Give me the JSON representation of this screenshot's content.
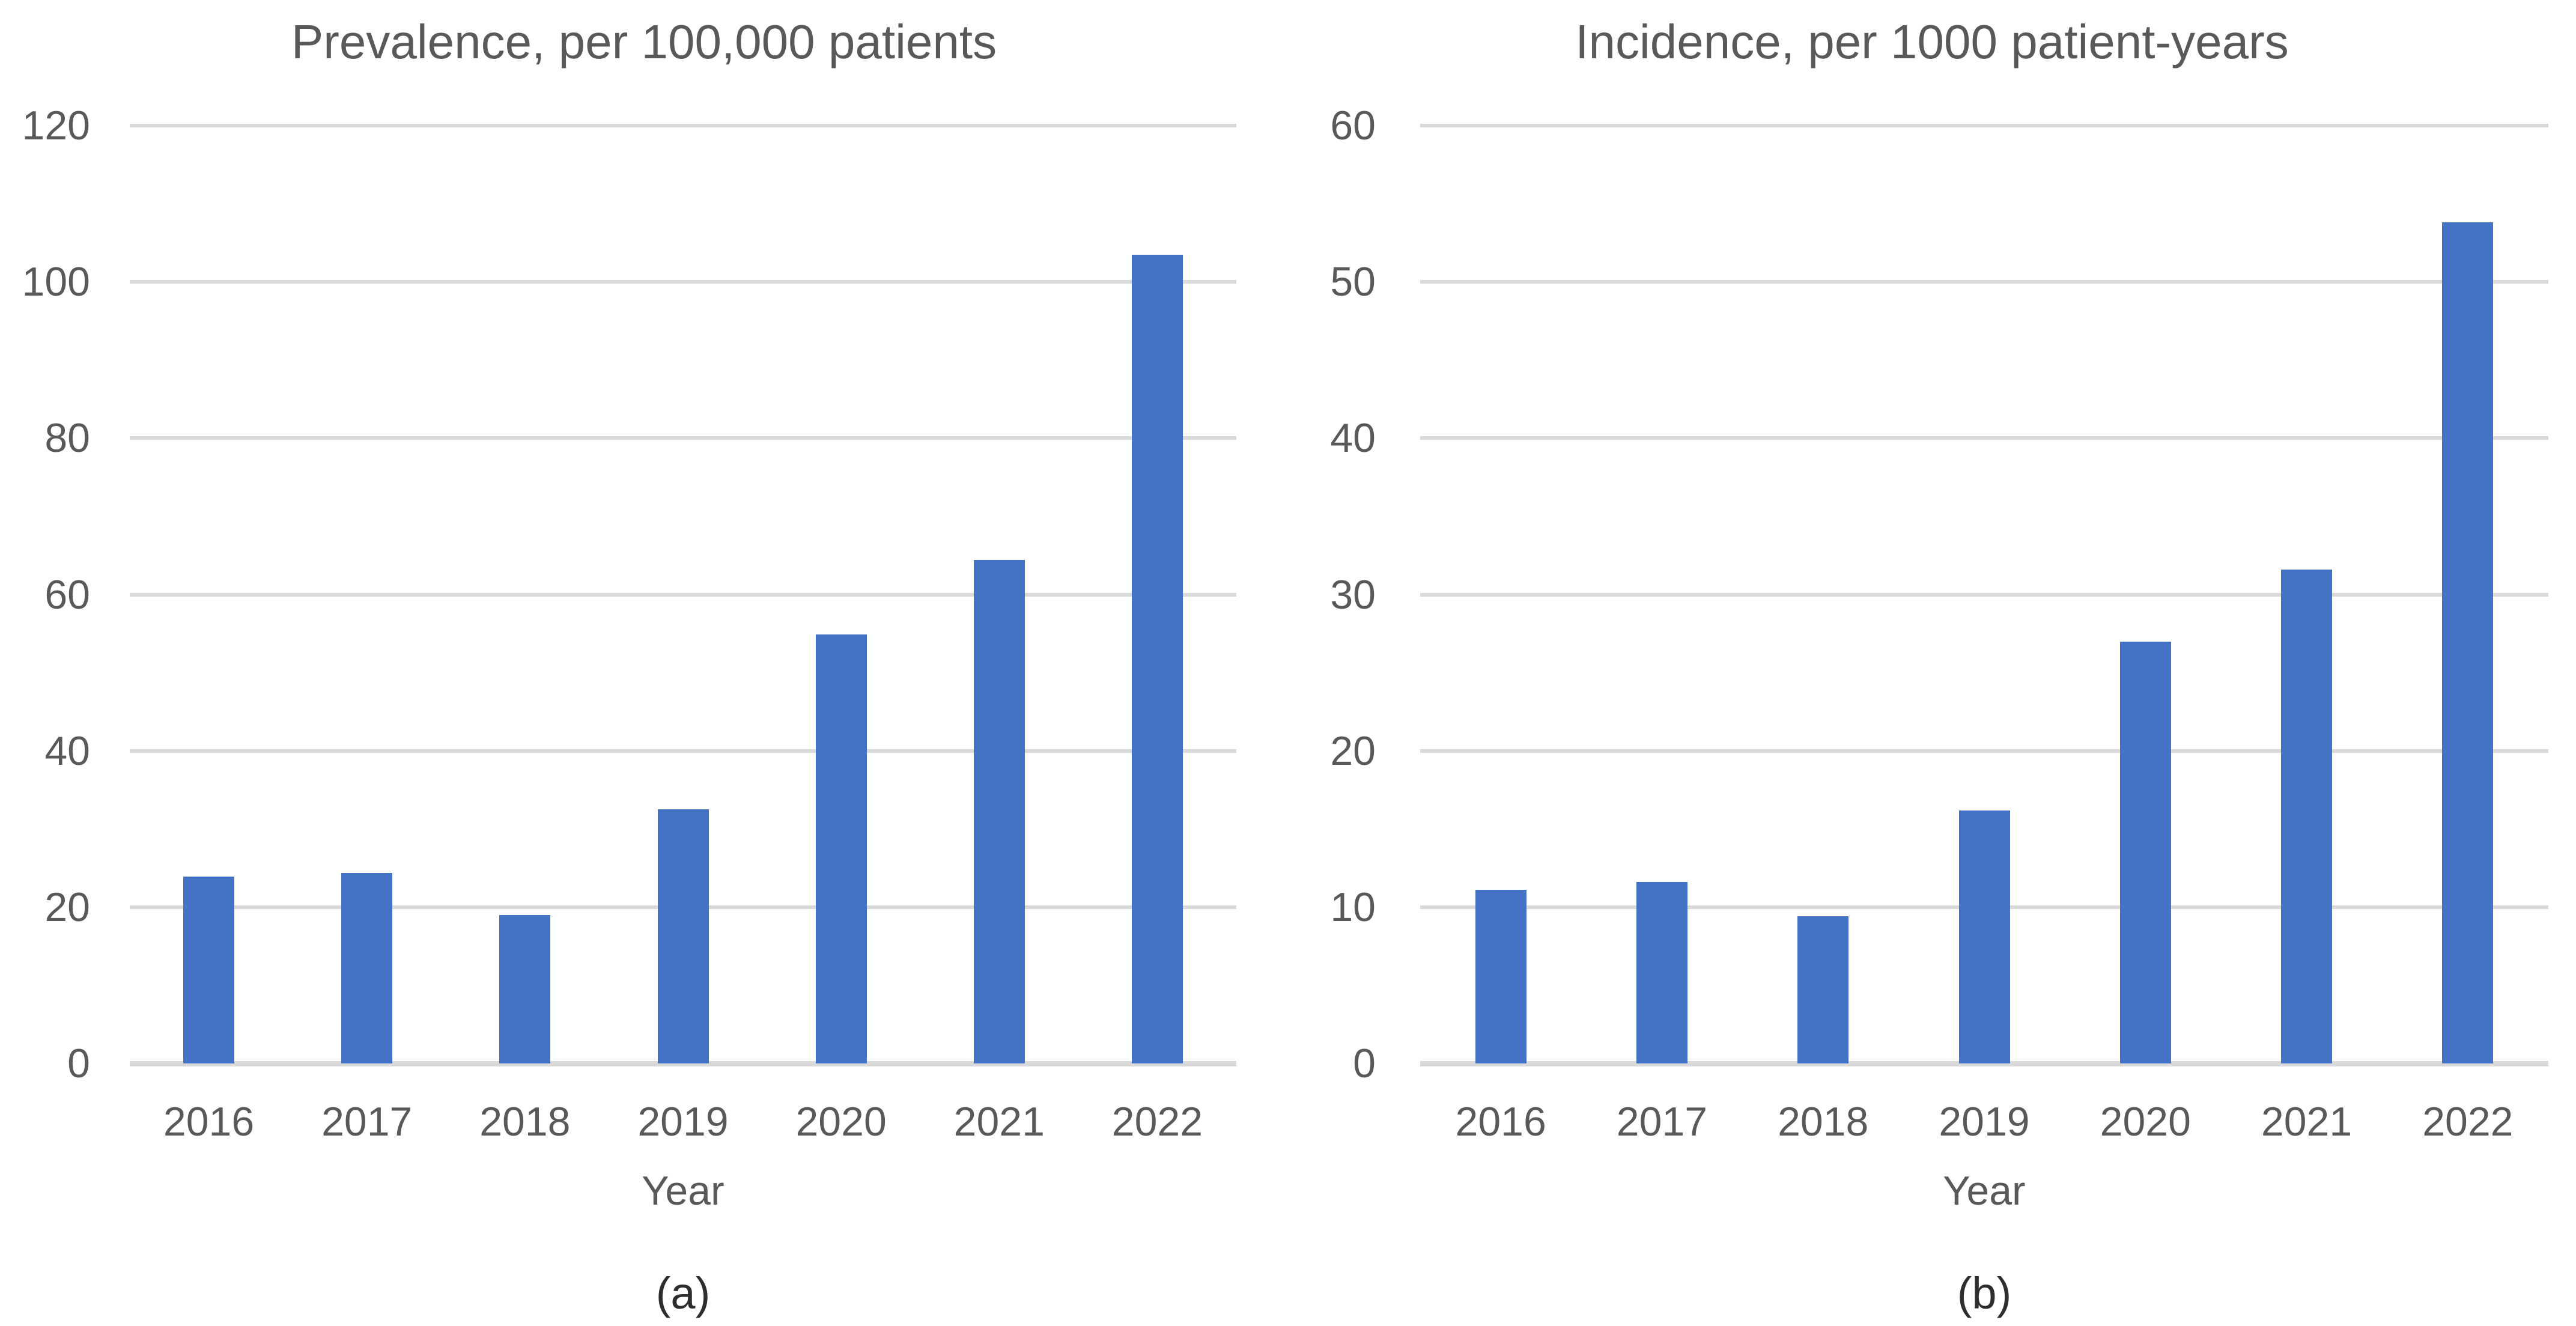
{
  "page": {
    "background_color": "#FFFFFF",
    "axis_text_color": "#595959",
    "caption_text_color": "#2E2E2E"
  },
  "chart_data": [
    {
      "type": "bar",
      "title": "Prevalence, per 100,000 patients",
      "categories": [
        "2016",
        "2017",
        "2018",
        "2019",
        "2020",
        "2021",
        "2022"
      ],
      "values": [
        23.9,
        24.4,
        19.0,
        32.5,
        54.9,
        64.4,
        103.5
      ],
      "xlabel": "Year",
      "ylabel": "",
      "caption": "(a)",
      "ylim": [
        0,
        120
      ],
      "yticks": [
        0,
        20,
        40,
        60,
        80,
        100,
        120
      ],
      "grid": true,
      "legend": "none",
      "bar_color": "#4472C4",
      "gridline_color": "#D9D9D9"
    },
    {
      "type": "bar",
      "title": "Incidence, per 1000 patient-years",
      "categories": [
        "2016",
        "2017",
        "2018",
        "2019",
        "2020",
        "2021",
        "2022"
      ],
      "values": [
        11.1,
        11.6,
        9.4,
        16.2,
        27.0,
        31.6,
        53.8
      ],
      "xlabel": "Year",
      "ylabel": "",
      "caption": "(b)",
      "ylim": [
        0,
        60
      ],
      "yticks": [
        0,
        10,
        20,
        30,
        40,
        50,
        60
      ],
      "grid": true,
      "legend": "none",
      "bar_color": "#4472C4",
      "gridline_color": "#D9D9D9"
    }
  ]
}
